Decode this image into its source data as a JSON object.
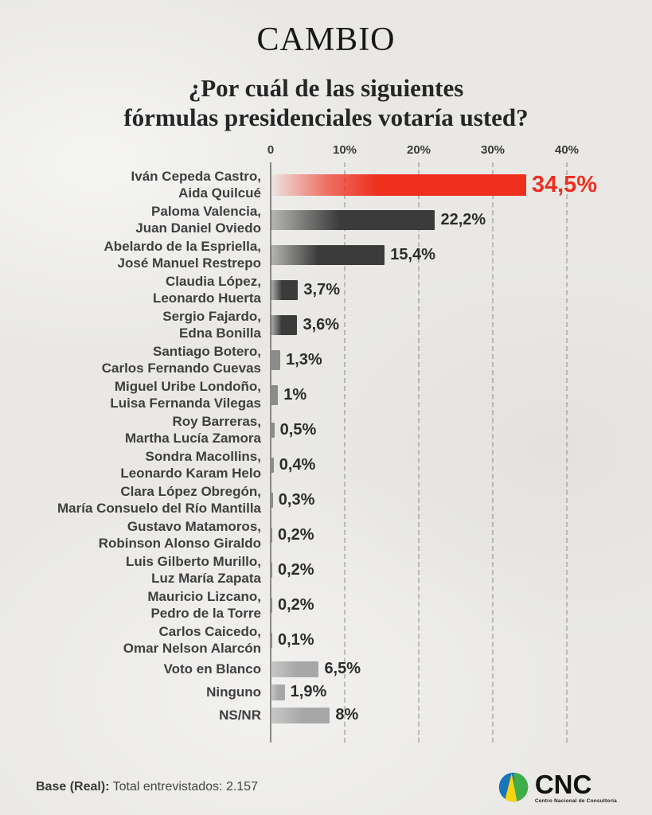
{
  "masthead": {
    "brand": "CAMBIO"
  },
  "question": {
    "line1": "¿Por cuál de las siguientes",
    "line2": "fórmulas presidenciales votaría usted?"
  },
  "chart_data": {
    "type": "bar",
    "orientation": "horizontal",
    "title": "¿Por cuál de las siguientes fórmulas presidenciales votaría usted?",
    "xlim": [
      0,
      40
    ],
    "grid": "dashed-vertical",
    "axis_ticks": [
      {
        "label": "0",
        "value": 0
      },
      {
        "label": "10%",
        "value": 10
      },
      {
        "label": "20%",
        "value": 20
      },
      {
        "label": "30%",
        "value": 30
      },
      {
        "label": "40%",
        "value": 40
      }
    ],
    "colors": {
      "red": "#ee2f1e",
      "dark": "#3b3b3b",
      "mid": "#8c8c8c",
      "light": "#a7a7a7"
    },
    "rows": [
      {
        "label_lines": [
          "Iván Cepeda Castro,",
          "Aida Quilcué"
        ],
        "value": 34.5,
        "value_label": "34,5%",
        "color": "red",
        "emphasis": true
      },
      {
        "label_lines": [
          "Paloma Valencia,",
          "Juan Daniel Oviedo"
        ],
        "value": 22.2,
        "value_label": "22,2%",
        "color": "dark",
        "emphasis": false
      },
      {
        "label_lines": [
          "Abelardo de la Espriella,",
          "José Manuel Restrepo"
        ],
        "value": 15.4,
        "value_label": "15,4%",
        "color": "dark",
        "emphasis": false
      },
      {
        "label_lines": [
          "Claudia López,",
          "Leonardo Huerta"
        ],
        "value": 3.7,
        "value_label": "3,7%",
        "color": "dark",
        "emphasis": false
      },
      {
        "label_lines": [
          "Sergio Fajardo,",
          "Edna Bonilla"
        ],
        "value": 3.6,
        "value_label": "3,6%",
        "color": "dark",
        "emphasis": false
      },
      {
        "label_lines": [
          "Santiago Botero,",
          "Carlos Fernando Cuevas"
        ],
        "value": 1.3,
        "value_label": "1,3%",
        "color": "mid",
        "emphasis": false
      },
      {
        "label_lines": [
          "Miguel Uribe Londoño,",
          "Luisa Fernanda Vilegas"
        ],
        "value": 1.0,
        "value_label": "1%",
        "color": "mid",
        "emphasis": false
      },
      {
        "label_lines": [
          "Roy Barreras,",
          "Martha Lucía Zamora"
        ],
        "value": 0.5,
        "value_label": "0,5%",
        "color": "mid",
        "emphasis": false
      },
      {
        "label_lines": [
          "Sondra Macollins,",
          "Leonardo Karam Helo"
        ],
        "value": 0.4,
        "value_label": "0,4%",
        "color": "mid",
        "emphasis": false
      },
      {
        "label_lines": [
          "Clara López Obregón,",
          "María Consuelo del Río Mantilla"
        ],
        "value": 0.3,
        "value_label": "0,3%",
        "color": "mid",
        "emphasis": false
      },
      {
        "label_lines": [
          "Gustavo Matamoros,",
          "Robinson Alonso Giraldo"
        ],
        "value": 0.2,
        "value_label": "0,2%",
        "color": "mid",
        "emphasis": false
      },
      {
        "label_lines": [
          "Luis Gilberto Murillo,",
          "Luz María Zapata"
        ],
        "value": 0.2,
        "value_label": "0,2%",
        "color": "mid",
        "emphasis": false
      },
      {
        "label_lines": [
          "Mauricio Lizcano,",
          "Pedro de la Torre"
        ],
        "value": 0.2,
        "value_label": "0,2%",
        "color": "mid",
        "emphasis": false
      },
      {
        "label_lines": [
          "Carlos Caicedo,",
          "Omar Nelson Alarcón"
        ],
        "value": 0.1,
        "value_label": "0,1%",
        "color": "mid",
        "emphasis": false
      },
      {
        "label_lines": [
          "Voto en Blanco"
        ],
        "value": 6.5,
        "value_label": "6,5%",
        "color": "light",
        "emphasis": false
      },
      {
        "label_lines": [
          "Ninguno"
        ],
        "value": 1.9,
        "value_label": "1,9%",
        "color": "light",
        "emphasis": false
      },
      {
        "label_lines": [
          "NS/NR"
        ],
        "value": 8.0,
        "value_label": "8%",
        "color": "light",
        "emphasis": false
      }
    ]
  },
  "footer": {
    "base_bold": "Base (Real):",
    "base_rest": " Total entrevistados: 2.157"
  },
  "logo": {
    "name": "CNC",
    "tagline": "Centro Nacional de Consultoría",
    "circle_blue": "#1b75bb",
    "circle_green": "#3fae49",
    "circle_yellow": "#f8d410"
  }
}
